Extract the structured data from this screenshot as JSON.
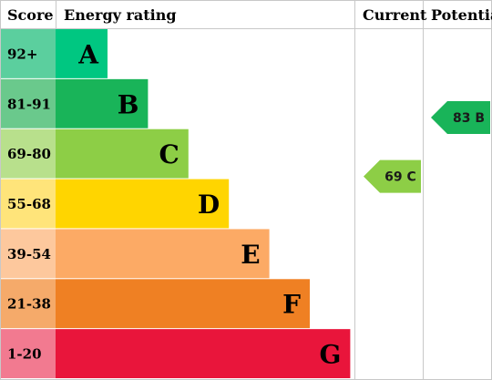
{
  "headers": {
    "score": "Score",
    "energy_rating": "Energy rating",
    "current": "Current",
    "potential": "Potential"
  },
  "chart_data": {
    "type": "bar",
    "categories": [
      "92+",
      "81-91",
      "69-80",
      "55-68",
      "39-54",
      "21-38",
      "1-20"
    ],
    "bands": [
      {
        "score": "92+",
        "letter": "A",
        "color": "#00c781",
        "score_bg": "#5bcf9e",
        "length": 1
      },
      {
        "score": "81-91",
        "letter": "B",
        "color": "#19b459",
        "score_bg": "#6ac98c",
        "length": 2
      },
      {
        "score": "69-80",
        "letter": "C",
        "color": "#8dce46",
        "score_bg": "#b8e08c",
        "length": 3
      },
      {
        "score": "55-68",
        "letter": "D",
        "color": "#ffd500",
        "score_bg": "#ffe47a",
        "length": 4
      },
      {
        "score": "39-54",
        "letter": "E",
        "color": "#fcaa65",
        "score_bg": "#fdc89d",
        "length": 5
      },
      {
        "score": "21-38",
        "letter": "F",
        "color": "#ef8023",
        "score_bg": "#f5aa6a",
        "length": 6
      },
      {
        "score": "1-20",
        "letter": "G",
        "color": "#e9153b",
        "score_bg": "#f27a90",
        "length": 7
      }
    ],
    "current": {
      "value": 69,
      "band": "C",
      "label": "69 C",
      "color": "#8dce46"
    },
    "potential": {
      "value": 83,
      "band": "B",
      "label": "83 B",
      "color": "#19b459"
    }
  }
}
